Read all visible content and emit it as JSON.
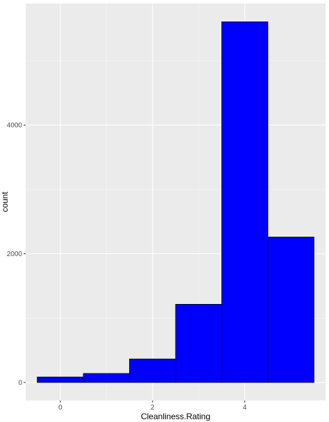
{
  "chart_data": {
    "type": "bar",
    "subtype": "histogram",
    "xlabel": "Cleanliness.Rating",
    "ylabel": "count",
    "bin_width": 1,
    "bins": [
      {
        "x": 0,
        "count": 85
      },
      {
        "x": 1,
        "count": 140
      },
      {
        "x": 2,
        "count": 365
      },
      {
        "x": 3,
        "count": 1215
      },
      {
        "x": 4,
        "count": 5605
      },
      {
        "x": 5,
        "count": 2260
      }
    ],
    "x_ticks": [
      0,
      2,
      4
    ],
    "x_tick_labels": [
      "0",
      "2",
      "4"
    ],
    "y_ticks": [
      0,
      2000,
      4000
    ],
    "y_tick_labels": [
      "0",
      "2000",
      "4000"
    ],
    "xlim": [
      -0.75,
      5.75
    ],
    "ylim": [
      -280,
      5890
    ],
    "grid": true,
    "legend": "none",
    "colors": {
      "bar_fill": "#0000ff",
      "bar_outline": "#000000",
      "panel_background": "#ebebeb",
      "grid_major": "#ffffff",
      "grid_minor": "#f5f5f5",
      "tick_text": "#4d4d4d"
    }
  }
}
